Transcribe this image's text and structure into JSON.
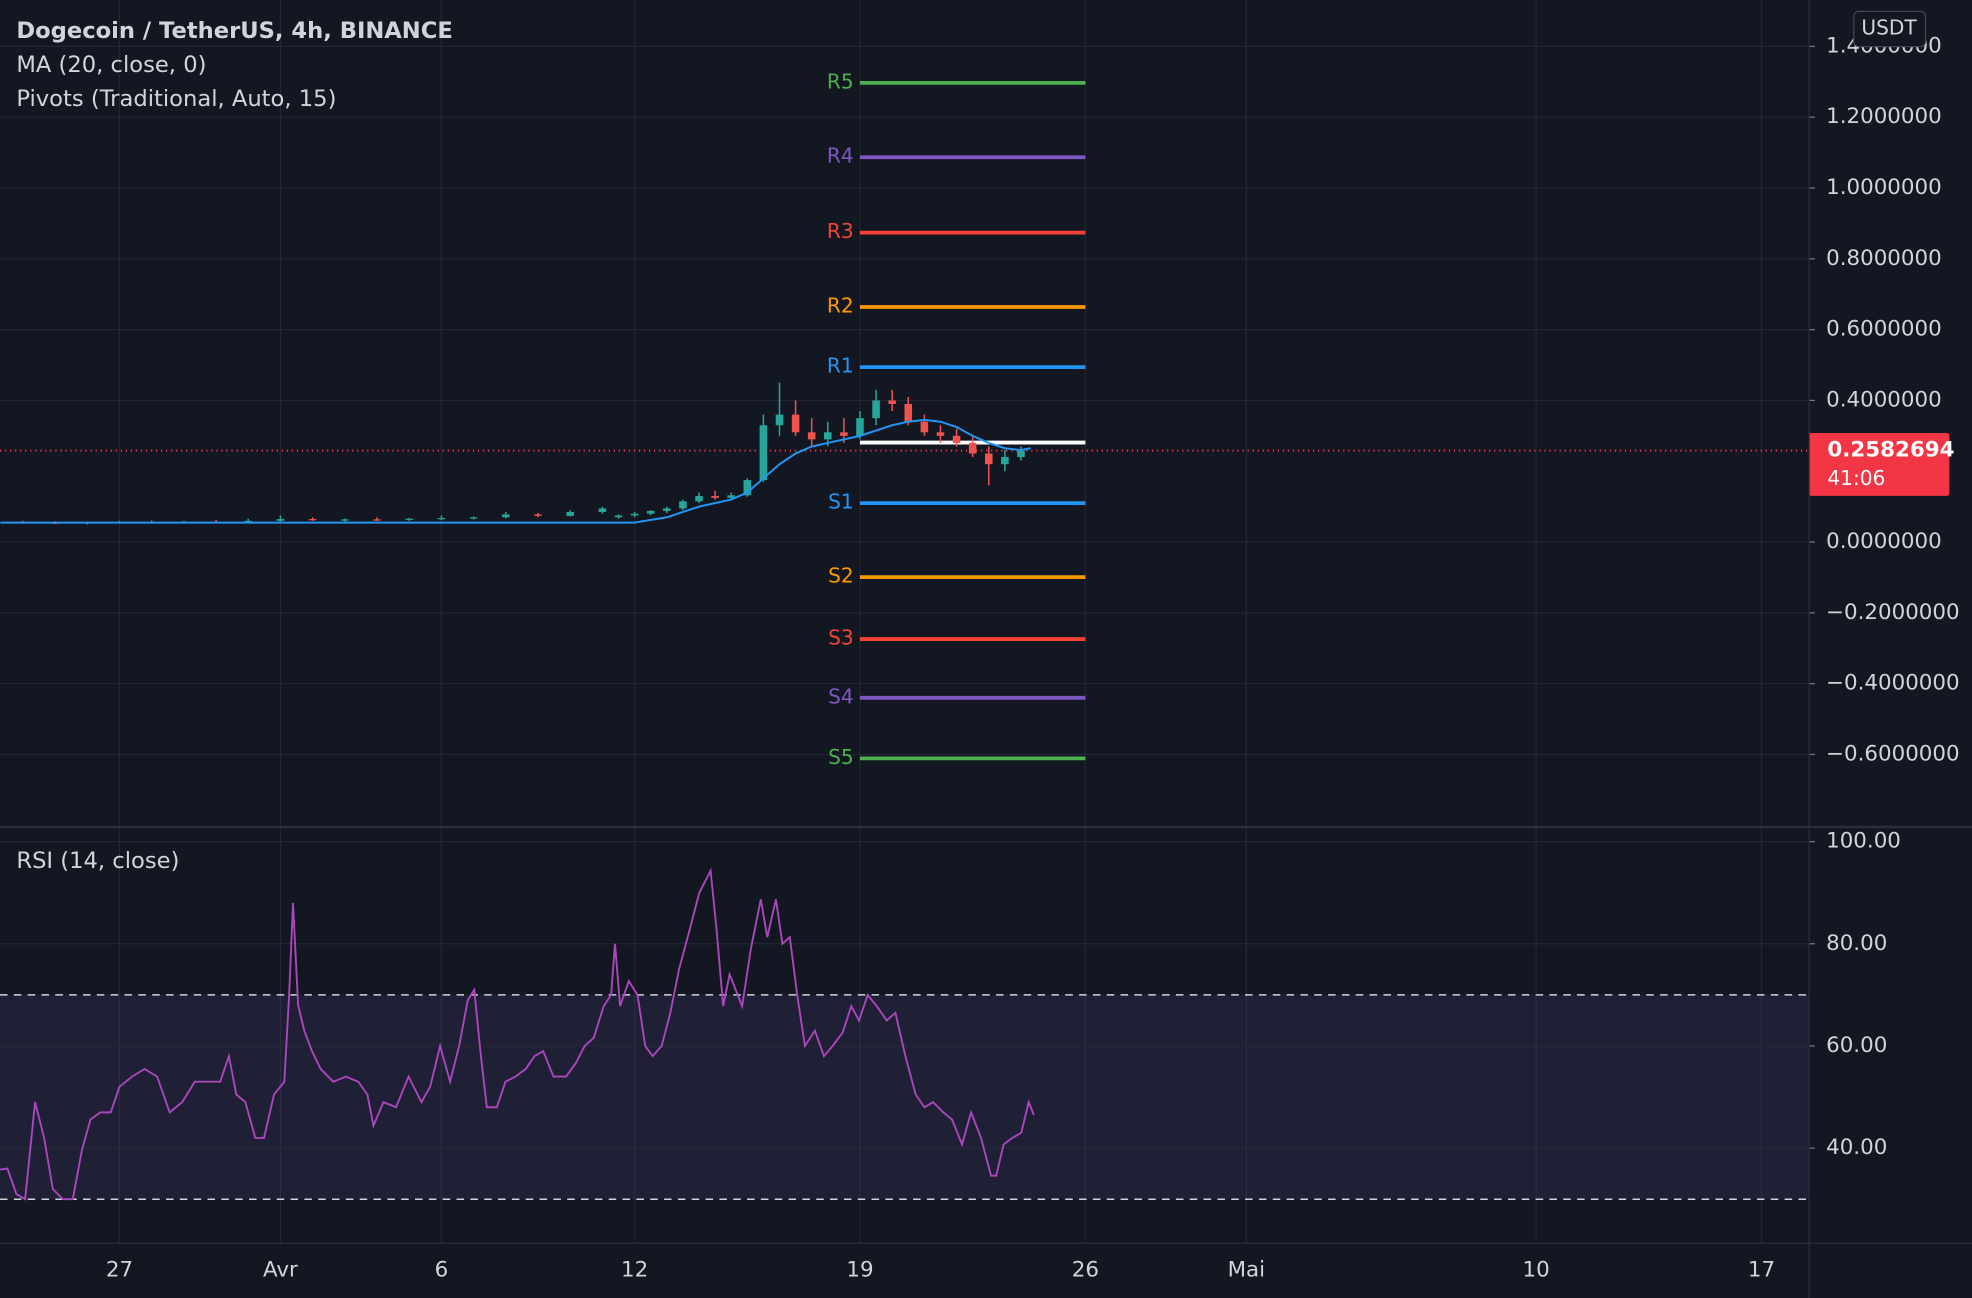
{
  "chart_data": [
    {
      "type": "candlestick",
      "title": "Dogecoin / TetherUS, 4h, BINANCE",
      "currency": "USDT",
      "x": [
        -3,
        -2,
        -1,
        0,
        1,
        2,
        3,
        4,
        5,
        6,
        7,
        8,
        9,
        10,
        11,
        12,
        13,
        14,
        15,
        15.5,
        16,
        16.5,
        17,
        17.5,
        18,
        18.5,
        19,
        19.5,
        20,
        20.5,
        21,
        21.5,
        22,
        22.5,
        23,
        23.5,
        24,
        24.5,
        25,
        25.5,
        26,
        26.5,
        27,
        27.5,
        28
      ],
      "open": [
        0.056,
        0.055,
        0.054,
        0.056,
        0.057,
        0.056,
        0.058,
        0.057,
        0.06,
        0.065,
        0.062,
        0.064,
        0.063,
        0.066,
        0.068,
        0.07,
        0.078,
        0.074,
        0.085,
        0.07,
        0.075,
        0.08,
        0.088,
        0.095,
        0.115,
        0.13,
        0.125,
        0.132,
        0.175,
        0.33,
        0.36,
        0.31,
        0.29,
        0.31,
        0.3,
        0.35,
        0.4,
        0.39,
        0.34,
        0.31,
        0.3,
        0.28,
        0.25,
        0.22,
        0.24
      ],
      "high": [
        0.06,
        0.059,
        0.058,
        0.06,
        0.061,
        0.06,
        0.062,
        0.066,
        0.075,
        0.07,
        0.067,
        0.07,
        0.068,
        0.075,
        0.072,
        0.085,
        0.082,
        0.09,
        0.1,
        0.078,
        0.085,
        0.09,
        0.1,
        0.12,
        0.14,
        0.145,
        0.14,
        0.18,
        0.36,
        0.45,
        0.4,
        0.35,
        0.34,
        0.35,
        0.37,
        0.43,
        0.43,
        0.41,
        0.36,
        0.33,
        0.32,
        0.3,
        0.27,
        0.26,
        0.27
      ],
      "low": [
        0.052,
        0.051,
        0.05,
        0.053,
        0.054,
        0.053,
        0.055,
        0.055,
        0.057,
        0.06,
        0.058,
        0.06,
        0.06,
        0.062,
        0.064,
        0.067,
        0.07,
        0.072,
        0.08,
        0.066,
        0.07,
        0.076,
        0.082,
        0.09,
        0.11,
        0.12,
        0.118,
        0.128,
        0.17,
        0.3,
        0.3,
        0.27,
        0.27,
        0.28,
        0.29,
        0.33,
        0.37,
        0.33,
        0.3,
        0.28,
        0.27,
        0.24,
        0.16,
        0.2,
        0.23
      ],
      "close": [
        0.055,
        0.054,
        0.056,
        0.057,
        0.056,
        0.058,
        0.057,
        0.06,
        0.065,
        0.062,
        0.064,
        0.063,
        0.066,
        0.068,
        0.07,
        0.078,
        0.074,
        0.085,
        0.095,
        0.075,
        0.08,
        0.088,
        0.095,
        0.115,
        0.13,
        0.125,
        0.132,
        0.175,
        0.33,
        0.36,
        0.31,
        0.29,
        0.31,
        0.3,
        0.35,
        0.4,
        0.39,
        0.34,
        0.31,
        0.3,
        0.28,
        0.25,
        0.22,
        0.24,
        0.258
      ],
      "up_color": "#26a69a",
      "down_color": "#ef5350",
      "ma": {
        "name": "MA (20, close, 0)",
        "color": "#2196f3",
        "x": [
          -3.7,
          16,
          17,
          18,
          19,
          19.5,
          20,
          20.5,
          21,
          21.5,
          22,
          23,
          24,
          24.5,
          25,
          25.5,
          26,
          26.5,
          27,
          27.5,
          28,
          28.3
        ],
        "values": [
          0.055,
          0.055,
          0.07,
          0.1,
          0.12,
          0.14,
          0.18,
          0.22,
          0.25,
          0.27,
          0.28,
          0.3,
          0.33,
          0.34,
          0.345,
          0.34,
          0.325,
          0.3,
          0.28,
          0.265,
          0.26,
          0.265
        ]
      },
      "pivots": {
        "name": "Pivots (Traditional, Auto, 15)",
        "x_start": 23,
        "x_end": 30,
        "labels": [
          "R5",
          "R4",
          "R3",
          "R2",
          "R1",
          null,
          "S1",
          "S2",
          "S3",
          "S4",
          "S5"
        ],
        "values": [
          1.297,
          1.087,
          0.874,
          0.664,
          0.494,
          0.281,
          0.11,
          -0.099,
          -0.274,
          -0.44,
          -0.611
        ],
        "colors": [
          "#4caf50",
          "#7e57c2",
          "#f44336",
          "#ff9800",
          "#2196f3",
          "#ffffff",
          "#2196f3",
          "#ff9800",
          "#f44336",
          "#7e57c2",
          "#4caf50"
        ]
      },
      "last_price": {
        "value": 0.2582694,
        "countdown": "41:06",
        "color": "#f23645"
      },
      "xlim": [
        -3.71,
        52.46
      ],
      "ylim": [
        -0.803,
        1.531
      ],
      "yticks": [
        {
          "value": 1.4,
          "label": "1.4000000"
        },
        {
          "value": 1.2,
          "label": "1.2000000"
        },
        {
          "value": 1,
          "label": "1.0000000"
        },
        {
          "value": 0.8,
          "label": "0.8000000"
        },
        {
          "value": 0.6,
          "label": "0.6000000"
        },
        {
          "value": 0.4,
          "label": "0.4000000"
        },
        {
          "value": 0,
          "label": "0.0000000"
        },
        {
          "value": -0.2,
          "label": "−0.2000000"
        },
        {
          "value": -0.4,
          "label": "−0.4000000"
        },
        {
          "value": -0.6,
          "label": "−0.6000000"
        }
      ],
      "grid": true
    },
    {
      "type": "line",
      "title": "RSI (14, close)",
      "color": "#ab47bc",
      "x": [
        -3.71,
        -3.48,
        -3.2,
        -2.93,
        -2.62,
        -2.34,
        -2.07,
        -1.76,
        -1.45,
        -1.17,
        -0.9,
        -0.59,
        -0.27,
        0,
        0.39,
        0.78,
        1.17,
        1.56,
        1.95,
        2.34,
        2.73,
        3.13,
        3.4,
        3.63,
        3.91,
        4.22,
        4.49,
        4.8,
        5.12,
        5.27,
        5.39,
        5.55,
        5.74,
        5.98,
        6.25,
        6.64,
        7.03,
        7.42,
        7.7,
        7.89,
        8.2,
        8.59,
        8.98,
        9.38,
        9.65,
        9.96,
        10.27,
        10.55,
        10.82,
        11.02,
        11.21,
        11.41,
        11.72,
        11.99,
        12.3,
        12.62,
        12.89,
        13.16,
        13.48,
        13.87,
        14.18,
        14.45,
        14.73,
        15.04,
        15.27,
        15.39,
        15.55,
        15.82,
        16.09,
        16.33,
        16.56,
        16.84,
        17.11,
        17.38,
        17.7,
        18.01,
        18.36,
        18.55,
        18.75,
        18.95,
        19.34,
        19.61,
        19.92,
        20.12,
        20.39,
        20.59,
        20.82,
        21.05,
        21.29,
        21.6,
        21.88,
        22.15,
        22.46,
        22.73,
        22.97,
        23.24,
        23.52,
        23.83,
        24.1,
        24.41,
        24.73,
        25,
        25.27,
        25.59,
        25.86,
        26.17,
        26.45,
        26.76,
        27.07,
        27.23,
        27.46,
        27.73,
        28.01,
        28.24,
        28.4
      ],
      "values": [
        35.8,
        36,
        31,
        30,
        49,
        42,
        32,
        30,
        30,
        39.5,
        45.6,
        47,
        47,
        52,
        54,
        55.5,
        54,
        47,
        49,
        53,
        53,
        53,
        58,
        50.5,
        49,
        42,
        42,
        50.5,
        53,
        70,
        88,
        68,
        63,
        59,
        55.5,
        53,
        54,
        53,
        50.5,
        44.4,
        49,
        48,
        54,
        49,
        52,
        60,
        53,
        60,
        69,
        71,
        59,
        48,
        48,
        53,
        54,
        55.5,
        58,
        59,
        54,
        54,
        56.7,
        60,
        61.6,
        67.8,
        70,
        80,
        67.8,
        72.7,
        70,
        60,
        58,
        60,
        66.5,
        75,
        82.5,
        90,
        94.3,
        82.5,
        67.8,
        74,
        67.8,
        79,
        88.7,
        81.3,
        88.7,
        80,
        81.3,
        70,
        60,
        63,
        58,
        60,
        62.6,
        67.8,
        65,
        70,
        67.8,
        65,
        66.5,
        58,
        50.5,
        48,
        49,
        47,
        45.6,
        40.7,
        47,
        42,
        34.6,
        34.6,
        40.7,
        42,
        43,
        49,
        46.5
      ],
      "band": {
        "lower": 30,
        "upper": 70,
        "fill": "#7e57c2"
      },
      "xlim": [
        -3.71,
        52.46
      ],
      "ylim": [
        21.5,
        103
      ],
      "yticks": [
        {
          "value": 100,
          "label": "100.00"
        },
        {
          "value": 80,
          "label": "80.00"
        },
        {
          "value": 60,
          "label": "60.00"
        },
        {
          "value": 40,
          "label": "40.00"
        }
      ],
      "xticks": [
        {
          "value": 0,
          "label": "27"
        },
        {
          "value": 5,
          "label": "Avr"
        },
        {
          "value": 10,
          "label": "6"
        },
        {
          "value": 16,
          "label": "12"
        },
        {
          "value": 23,
          "label": "19"
        },
        {
          "value": 30,
          "label": "26"
        },
        {
          "value": 35,
          "label": "Mai"
        },
        {
          "value": 44,
          "label": "10"
        },
        {
          "value": 51,
          "label": "17"
        }
      ],
      "grid": true
    }
  ]
}
